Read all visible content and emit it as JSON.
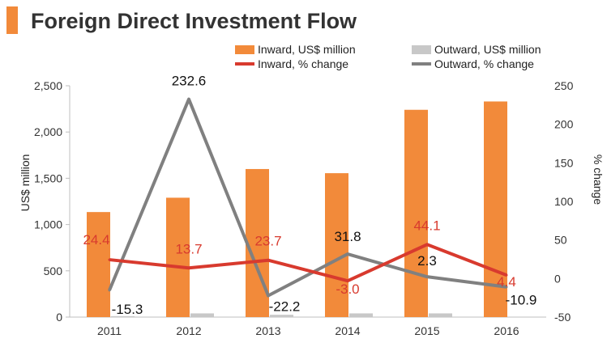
{
  "title": "Foreign Direct Investment Flow",
  "colors": {
    "accent": "#f28a3a",
    "inward_bar": "#f28a3a",
    "outward_bar": "#c8c8c8",
    "inward_line": "#d83a2e",
    "outward_line": "#808080"
  },
  "chart_data": {
    "type": "bar",
    "title": "Foreign Direct Investment Flow",
    "categories": [
      "2011",
      "2012",
      "2013",
      "2014",
      "2015",
      "2016"
    ],
    "ylabel": "US$ million",
    "y2label": "% change",
    "ylim": [
      0,
      2500
    ],
    "y2lim": [
      -50,
      250
    ],
    "y_ticks": [
      "0",
      "500",
      "1,000",
      "1,500",
      "2,000",
      "2,500"
    ],
    "y2_ticks": [
      "-50",
      "0",
      "50",
      "100",
      "150",
      "200",
      "250"
    ],
    "legend_position": "top-right",
    "series": [
      {
        "name": "Inward, US$ million",
        "type": "bar",
        "axis": "left",
        "values": [
          1135,
          1290,
          1600,
          1555,
          2240,
          2330
        ]
      },
      {
        "name": "Outward, US$ million",
        "type": "bar",
        "axis": "left",
        "values": [
          10,
          40,
          25,
          40,
          40,
          0
        ]
      },
      {
        "name": "Inward, % change",
        "type": "line",
        "axis": "right",
        "values": [
          24.4,
          13.7,
          23.7,
          -3.0,
          44.1,
          4.4
        ],
        "labels": [
          "24.4",
          "13.7",
          "23.7",
          "-3.0",
          "44.1",
          "4.4"
        ]
      },
      {
        "name": "Outward, % change",
        "type": "line",
        "axis": "right",
        "values": [
          -15.3,
          232.6,
          -22.2,
          31.8,
          2.3,
          -10.9
        ],
        "labels": [
          "-15.3",
          "232.6",
          "-22.2",
          "31.8",
          "2.3",
          "-10.9"
        ]
      }
    ]
  }
}
